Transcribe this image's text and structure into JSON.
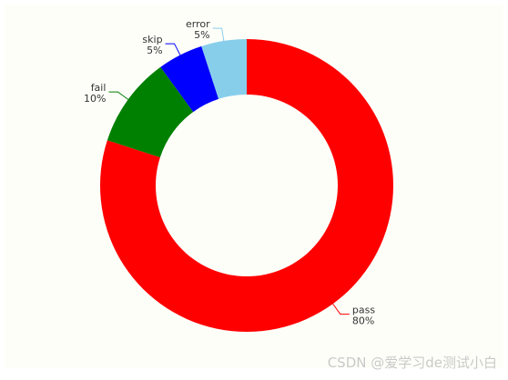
{
  "chart_data": {
    "type": "pie",
    "variant": "donut",
    "start_angle": "top",
    "direction": "clockwise",
    "categories": [
      "pass",
      "fail",
      "skip",
      "error"
    ],
    "values": [
      80,
      10,
      5,
      5
    ],
    "percent_labels": [
      "80%",
      "10%",
      "5%",
      "5%"
    ],
    "colors": [
      "#ff0000",
      "#008000",
      "#0000ff",
      "#87ceeb"
    ],
    "labels_outside": true,
    "legend": "none"
  },
  "watermark": "CSDN @爱学习de测试小白"
}
